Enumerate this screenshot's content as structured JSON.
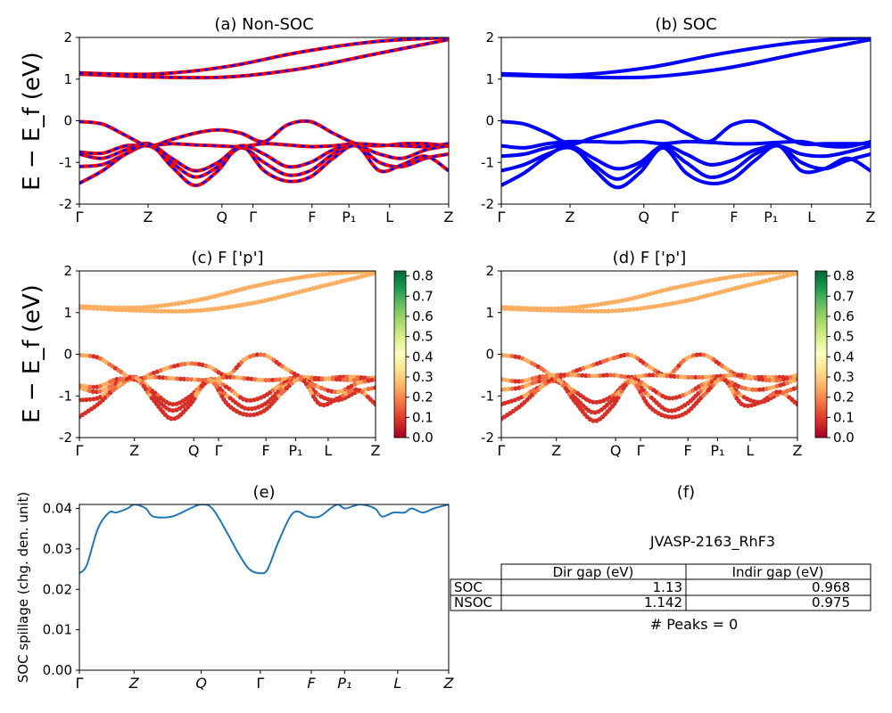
{
  "figure_id": "JVASP-2163_RhF3",
  "colors": {
    "nsoc_line": "#ff0000",
    "nsoc_dash": "#0000ff",
    "soc_line": "#0000ff",
    "spillage_line": "#1f77b4"
  },
  "chart_data": [
    {
      "id": "a",
      "type": "line",
      "title": "(a) Non-SOC",
      "ylabel": "E − E_f (eV)",
      "ylim": [
        -2,
        2
      ],
      "yticks": [
        -2,
        -1,
        0,
        1,
        2
      ],
      "kpoint_labels": [
        "Γ",
        "Z",
        "Q",
        "Γ",
        "F",
        "P₁",
        "L",
        "Z"
      ],
      "kpoint_positions": [
        0,
        0.186,
        0.386,
        0.47,
        0.63,
        0.73,
        0.84,
        1.0
      ],
      "series": [
        {
          "values": [
            1.12,
            1.05,
            1.05,
            1.25,
            1.6,
            1.95
          ]
        },
        {
          "values": [
            1.15,
            1.12,
            1.3,
            1.65,
            1.9,
            2.0
          ]
        },
        {
          "values": [
            -0.02,
            -0.08,
            -0.35,
            -0.6,
            -0.45,
            -0.3,
            -0.22,
            -0.3,
            -0.5,
            -0.1,
            -0.02,
            -0.3,
            -0.55,
            -0.6,
            -0.55,
            -0.55,
            -0.6
          ]
        },
        {
          "values": [
            -0.75,
            -0.78,
            -0.6,
            -0.6,
            -0.55,
            -0.58,
            -0.6,
            -0.62,
            -0.55,
            -0.58,
            -0.62,
            -0.6,
            -0.55,
            -0.58,
            -0.6,
            -0.62,
            -0.55
          ]
        },
        {
          "values": [
            -0.8,
            -0.9,
            -0.7,
            -0.55,
            -0.9,
            -1.2,
            -1.0,
            -0.6,
            -0.8,
            -1.1,
            -1.0,
            -0.7,
            -0.6,
            -0.8,
            -0.9,
            -0.7,
            -0.6
          ]
        },
        {
          "values": [
            -1.1,
            -1.05,
            -0.8,
            -0.6,
            -1.0,
            -1.35,
            -1.1,
            -0.65,
            -1.0,
            -1.3,
            -1.2,
            -0.8,
            -0.6,
            -1.0,
            -1.1,
            -0.9,
            -0.8
          ]
        },
        {
          "values": [
            -1.5,
            -1.2,
            -0.8,
            -0.55,
            -1.1,
            -1.55,
            -1.2,
            -0.6,
            -1.2,
            -1.45,
            -1.35,
            -0.9,
            -0.6,
            -1.2,
            -1.05,
            -0.85,
            -1.2
          ]
        }
      ]
    },
    {
      "id": "b",
      "type": "line",
      "title": "(b) SOC",
      "ylim": [
        -2,
        2
      ],
      "yticks": [
        -2,
        -1,
        0,
        1,
        2
      ],
      "kpoint_labels": [
        "Γ",
        "Z",
        "Q",
        "Γ",
        "F",
        "P₁",
        "L",
        "Z"
      ],
      "kpoint_positions": [
        0,
        0.186,
        0.386,
        0.47,
        0.63,
        0.73,
        0.84,
        1.0
      ],
      "series": [
        {
          "values": [
            1.1,
            1.05,
            1.05,
            1.25,
            1.6,
            1.95
          ]
        },
        {
          "values": [
            1.13,
            1.1,
            1.28,
            1.62,
            1.88,
            2.0
          ]
        },
        {
          "values": [
            -0.02,
            -0.08,
            -0.3,
            -0.55,
            -0.4,
            -0.25,
            -0.1,
            -0.02,
            -0.3,
            -0.5,
            -0.1,
            -0.02,
            -0.3,
            -0.55,
            -0.55,
            -0.55,
            -0.55
          ]
        },
        {
          "values": [
            -0.6,
            -0.65,
            -0.55,
            -0.5,
            -0.5,
            -0.52,
            -0.5,
            -0.55,
            -0.5,
            -0.52,
            -0.55,
            -0.55,
            -0.52,
            -0.5,
            -0.6,
            -0.62,
            -0.5
          ]
        },
        {
          "values": [
            -0.85,
            -0.8,
            -0.65,
            -0.6,
            -0.9,
            -1.15,
            -1.0,
            -0.6,
            -0.8,
            -1.05,
            -0.95,
            -0.7,
            -0.6,
            -0.8,
            -0.85,
            -0.75,
            -0.6
          ]
        },
        {
          "values": [
            -1.2,
            -1.05,
            -0.8,
            -0.65,
            -1.05,
            -1.4,
            -1.1,
            -0.65,
            -1.0,
            -1.35,
            -1.2,
            -0.8,
            -0.6,
            -1.0,
            -1.15,
            -0.95,
            -0.8
          ]
        },
        {
          "values": [
            -1.55,
            -1.25,
            -0.85,
            -0.6,
            -1.15,
            -1.6,
            -1.25,
            -0.65,
            -1.25,
            -1.5,
            -1.4,
            -0.95,
            -0.6,
            -1.2,
            -1.15,
            -0.9,
            -1.2
          ]
        }
      ]
    },
    {
      "id": "c",
      "type": "scatter",
      "title": "(c)  F ['p']",
      "ylabel": "E − E_f (eV)",
      "ylim": [
        -2,
        2
      ],
      "yticks": [
        -2,
        -1,
        0,
        1,
        2
      ],
      "kpoint_labels": [
        "Γ",
        "Z",
        "Q",
        "Γ",
        "F",
        "P₁",
        "L",
        "Z"
      ],
      "kpoint_positions": [
        0,
        0.186,
        0.386,
        0.47,
        0.63,
        0.73,
        0.84,
        1.0
      ],
      "colorbar": {
        "min": 0.0,
        "max": 0.8,
        "ticks": [
          "0.0",
          "0.1",
          "0.2",
          "0.3",
          "0.4",
          "0.5",
          "0.6",
          "0.7",
          "0.8"
        ],
        "colormap": "RdYlGn"
      }
    },
    {
      "id": "d",
      "type": "scatter",
      "title": "(d) F ['p']",
      "ylim": [
        -2,
        2
      ],
      "yticks": [
        -2,
        -1,
        0,
        1,
        2
      ],
      "kpoint_labels": [
        "Γ",
        "Z",
        "Q",
        "Γ",
        "F",
        "P₁",
        "L",
        "Z"
      ],
      "kpoint_positions": [
        0,
        0.186,
        0.386,
        0.47,
        0.63,
        0.73,
        0.84,
        1.0
      ],
      "colorbar": {
        "min": 0.0,
        "max": 0.8,
        "ticks": [
          "0.0",
          "0.1",
          "0.2",
          "0.3",
          "0.4",
          "0.5",
          "0.6",
          "0.7",
          "0.8"
        ],
        "colormap": "RdYlGn"
      }
    },
    {
      "id": "e",
      "type": "line",
      "title": "(e)",
      "ylabel": "SOC spillage (chg. den. unit)",
      "ylim": [
        0.0,
        0.041
      ],
      "yticks": [
        "0.00",
        "0.01",
        "0.02",
        "0.03",
        "0.04"
      ],
      "kpoint_labels": [
        "Γ",
        "Z",
        "Q",
        "Γ",
        "F",
        "P₁",
        "L",
        "Z"
      ],
      "kpoint_positions": [
        0,
        0.148,
        0.33,
        0.49,
        0.628,
        0.718,
        0.862,
        1.0
      ],
      "series": [
        {
          "x": [
            0,
            0.02,
            0.05,
            0.08,
            0.1,
            0.13,
            0.15,
            0.18,
            0.2,
            0.25,
            0.3,
            0.33,
            0.36,
            0.4,
            0.43,
            0.46,
            0.49,
            0.51,
            0.54,
            0.58,
            0.62,
            0.65,
            0.68,
            0.7,
            0.72,
            0.76,
            0.8,
            0.82,
            0.85,
            0.88,
            0.9,
            0.93,
            0.96,
            1.0
          ],
          "y": [
            0.024,
            0.026,
            0.035,
            0.039,
            0.039,
            0.04,
            0.041,
            0.04,
            0.038,
            0.038,
            0.04,
            0.041,
            0.04,
            0.034,
            0.029,
            0.025,
            0.024,
            0.025,
            0.032,
            0.039,
            0.038,
            0.038,
            0.04,
            0.041,
            0.04,
            0.041,
            0.04,
            0.038,
            0.039,
            0.039,
            0.04,
            0.039,
            0.04,
            0.041
          ]
        }
      ]
    },
    {
      "id": "f",
      "type": "table",
      "title": "(f)",
      "caption": "JVASP-2163_RhF3",
      "columns": [
        "",
        "Dir gap (eV)",
        "Indir gap (eV)"
      ],
      "rows": [
        [
          "SOC",
          "1.13",
          "0.968"
        ],
        [
          "NSOC",
          "1.142",
          "0.975"
        ]
      ],
      "footer": "# Peaks = 0"
    }
  ]
}
